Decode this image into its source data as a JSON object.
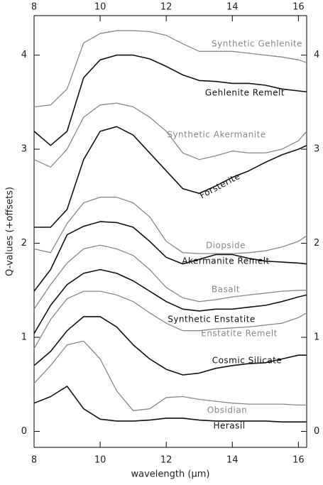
{
  "chart_data": {
    "type": "line",
    "xlabel": "wavelength (μm)",
    "ylabel": "Q-values (+offsets)",
    "x": [
      8,
      8.5,
      9,
      9.5,
      10,
      10.5,
      11,
      11.5,
      12,
      12.5,
      13,
      13.5,
      14,
      14.5,
      15,
      15.5,
      16,
      16.25
    ],
    "xlim": [
      8,
      16.25
    ],
    "xticks": [
      8,
      10,
      12,
      14,
      16
    ],
    "ylim": [
      -0.17,
      4.42
    ],
    "yticks": [
      0,
      1,
      2,
      3,
      4
    ],
    "series": [
      {
        "name": "Synthetic Gehlenite",
        "color": "#888888",
        "values": [
          3.45,
          3.47,
          3.64,
          4.13,
          4.23,
          4.26,
          4.26,
          4.25,
          4.21,
          4.12,
          4.04,
          4.04,
          4.04,
          4.02,
          4.0,
          3.98,
          3.95,
          3.92
        ]
      },
      {
        "name": "Gehlenite Remelt",
        "color": "#111111",
        "values": [
          3.19,
          3.04,
          3.19,
          3.76,
          3.95,
          4.0,
          4.0,
          3.96,
          3.88,
          3.79,
          3.73,
          3.72,
          3.7,
          3.7,
          3.68,
          3.64,
          3.62,
          3.61
        ]
      },
      {
        "name": "Synthetic Akermanite",
        "color": "#888888",
        "values": [
          2.89,
          2.81,
          3.0,
          3.34,
          3.47,
          3.49,
          3.45,
          3.34,
          3.19,
          2.96,
          2.89,
          2.93,
          2.98,
          2.96,
          2.96,
          3.0,
          3.09,
          3.19
        ]
      },
      {
        "name": "Forsterite",
        "color": "#111111",
        "values": [
          2.17,
          2.17,
          2.36,
          2.89,
          3.19,
          3.24,
          3.15,
          2.96,
          2.77,
          2.58,
          2.53,
          2.61,
          2.7,
          2.77,
          2.86,
          2.94,
          3.0,
          3.04
        ]
      },
      {
        "name": "Diopside",
        "color": "#888888",
        "values": [
          1.94,
          1.9,
          2.21,
          2.43,
          2.49,
          2.49,
          2.43,
          2.28,
          2.02,
          1.9,
          1.89,
          1.89,
          1.89,
          1.9,
          1.92,
          1.96,
          2.02,
          2.08
        ]
      },
      {
        "name": "Akermanite Remelt",
        "color": "#111111",
        "values": [
          1.49,
          1.72,
          2.09,
          2.18,
          2.23,
          2.22,
          2.17,
          2.02,
          1.85,
          1.78,
          1.83,
          1.88,
          1.88,
          1.84,
          1.81,
          1.8,
          1.79,
          1.78
        ]
      },
      {
        "name": "Basalt",
        "color": "#888888",
        "values": [
          1.3,
          1.56,
          1.79,
          1.94,
          1.98,
          1.94,
          1.87,
          1.72,
          1.53,
          1.42,
          1.38,
          1.4,
          1.43,
          1.45,
          1.47,
          1.49,
          1.5,
          1.5
        ]
      },
      {
        "name": "Synthetic Enstatite",
        "color": "#111111",
        "values": [
          1.04,
          1.34,
          1.56,
          1.68,
          1.72,
          1.68,
          1.6,
          1.49,
          1.38,
          1.3,
          1.28,
          1.3,
          1.3,
          1.32,
          1.34,
          1.38,
          1.43,
          1.45
        ]
      },
      {
        "name": "Enstatite Remelt",
        "color": "#888888",
        "values": [
          0.88,
          1.19,
          1.41,
          1.49,
          1.49,
          1.45,
          1.38,
          1.26,
          1.15,
          1.07,
          1.07,
          1.09,
          1.1,
          1.11,
          1.13,
          1.15,
          1.21,
          1.26
        ]
      },
      {
        "name": "Cosmic Silicate",
        "color": "#111111",
        "values": [
          0.7,
          0.85,
          1.07,
          1.22,
          1.22,
          1.11,
          0.92,
          0.77,
          0.66,
          0.6,
          0.62,
          0.67,
          0.7,
          0.72,
          0.73,
          0.77,
          0.81,
          0.81
        ]
      },
      {
        "name": "Obsidian",
        "color": "#888888",
        "values": [
          0.51,
          0.7,
          0.92,
          0.96,
          0.77,
          0.43,
          0.22,
          0.24,
          0.36,
          0.37,
          0.34,
          0.32,
          0.3,
          0.29,
          0.29,
          0.29,
          0.28,
          0.28
        ]
      },
      {
        "name": "Herasil",
        "color": "#111111",
        "values": [
          0.3,
          0.37,
          0.48,
          0.24,
          0.13,
          0.11,
          0.11,
          0.12,
          0.14,
          0.14,
          0.12,
          0.11,
          0.11,
          0.11,
          0.11,
          0.1,
          0.1,
          0.1
        ]
      }
    ]
  }
}
